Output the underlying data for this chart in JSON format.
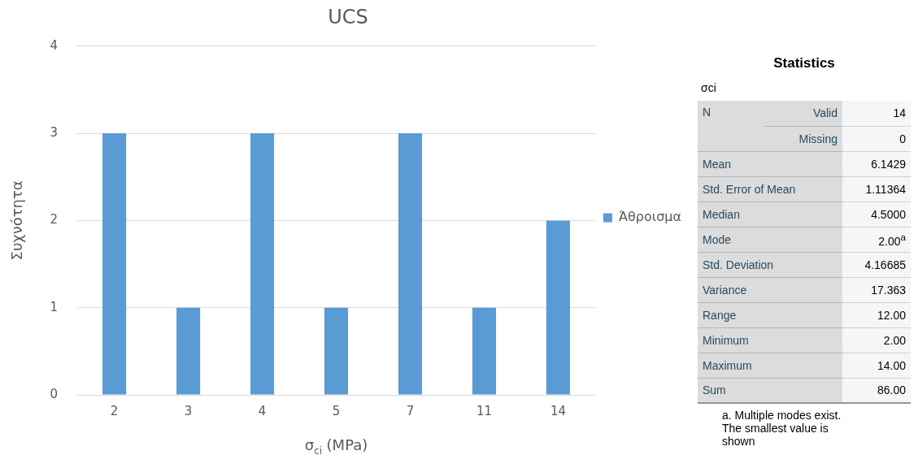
{
  "chart_data": [
    {
      "type": "bar",
      "title": "UCS",
      "xlabel": "σ$_{ci}$ (MPa)",
      "ylabel": "Συχνότητα",
      "categories": [
        "2",
        "3",
        "4",
        "5",
        "7",
        "11",
        "14"
      ],
      "series": [
        {
          "name": "Άθροισμα",
          "color": "#5b9bd5",
          "values": [
            3,
            1,
            3,
            1,
            3,
            1,
            2
          ]
        }
      ],
      "ylim": [
        0,
        4
      ],
      "yticks": [
        0,
        1,
        2,
        3,
        4
      ],
      "grid": "y",
      "legend": "right"
    },
    {
      "type": "other",
      "title": "Statistics",
      "subtitle": "σci",
      "cell_labels": [
        [
          "N",
          "Valid",
          "14"
        ],
        [
          null,
          "Missing",
          "0"
        ],
        [
          "Mean",
          null,
          "6.1429"
        ],
        [
          "Std. Error of Mean",
          null,
          "1.11364"
        ],
        [
          "Median",
          null,
          "4.5000"
        ],
        [
          "Mode",
          null,
          "2.00$^{a}$"
        ],
        [
          "Std. Deviation",
          null,
          "4.16685"
        ],
        [
          "Variance",
          null,
          "17.363"
        ],
        [
          "Range",
          null,
          "12.00"
        ],
        [
          "Minimum",
          null,
          "2.00"
        ],
        [
          "Maximum",
          null,
          "14.00"
        ],
        [
          "Sum",
          null,
          "86.00"
        ]
      ],
      "annotations": [
        "a. Multiple modes exist. The smallest value is shown"
      ]
    }
  ]
}
